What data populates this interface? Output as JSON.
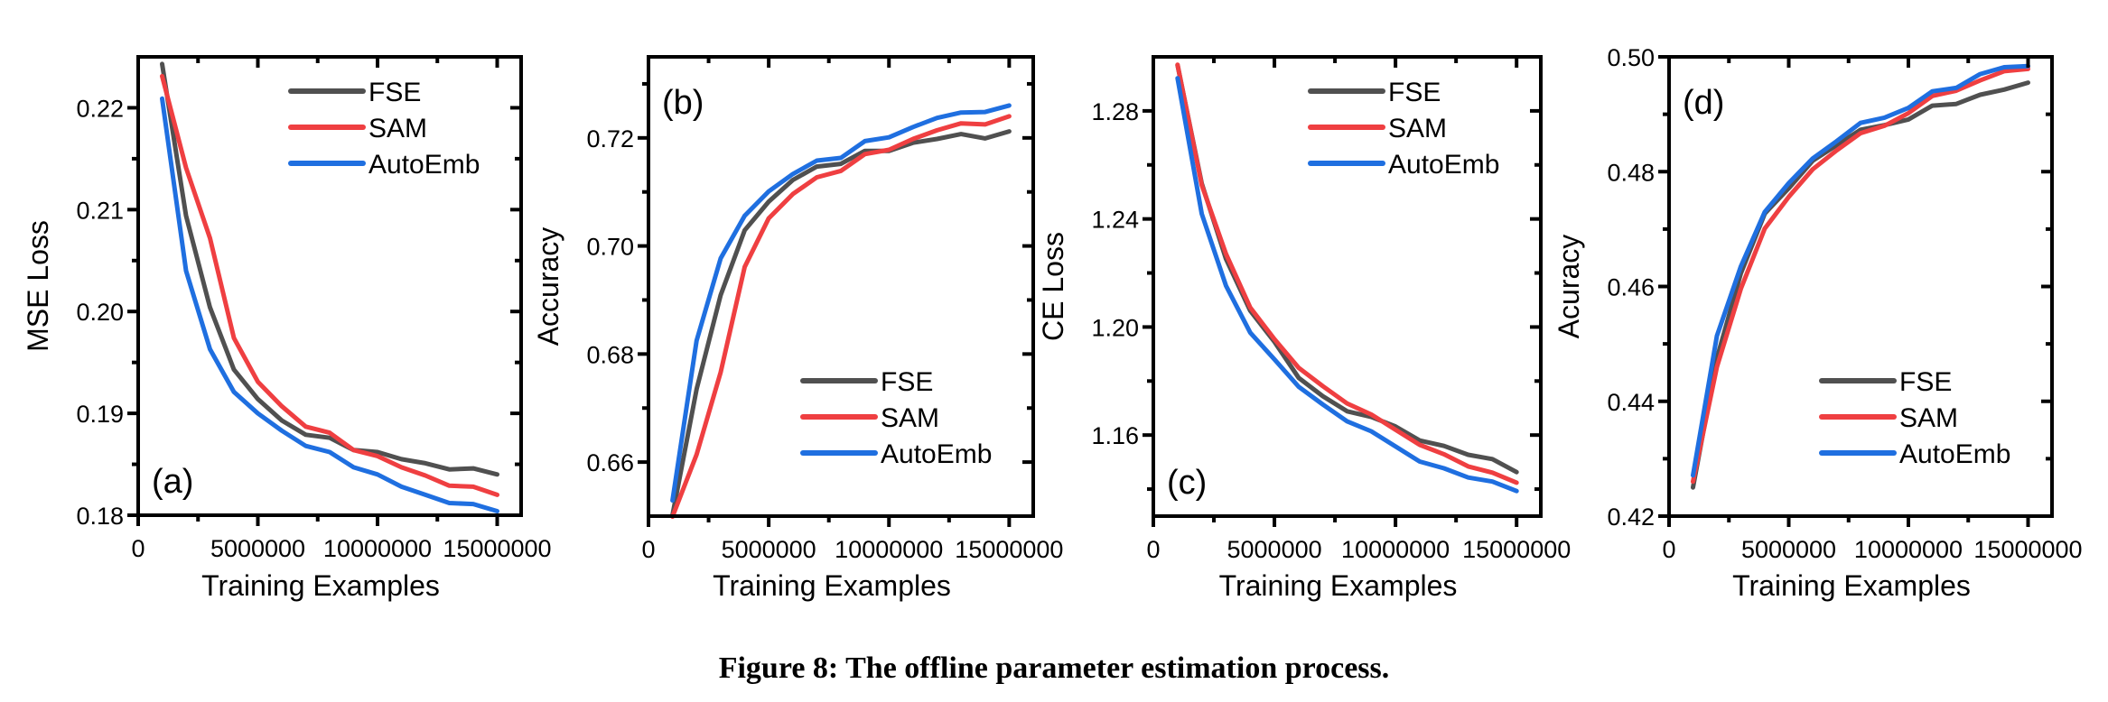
{
  "caption": "Figure 8: The offline parameter estimation process.",
  "colors": {
    "FSE": "#505050",
    "SAM": "#ef3f41",
    "AutoEmb": "#1f6fe0"
  },
  "chart_data": [
    {
      "type": "line",
      "panel_label": "(a)",
      "title": "",
      "xlabel": "Training Examples",
      "ylabel": "MSE Loss",
      "xlim": [
        0,
        16000000
      ],
      "ylim": [
        0.18,
        0.225
      ],
      "xticks": [
        0,
        5000000,
        10000000,
        15000000
      ],
      "xtick_labels": [
        "0",
        "5000000",
        "10000000",
        "15000000"
      ],
      "xminor": [
        2500000,
        7500000,
        12500000
      ],
      "yticks": [
        0.18,
        0.19,
        0.2,
        0.21,
        0.22
      ],
      "ytick_labels": [
        "0.18",
        "0.19",
        "0.20",
        "0.21",
        "0.22"
      ],
      "yminor": [
        0.185,
        0.195,
        0.205,
        0.215
      ],
      "legend_position": "top-right",
      "grid": false,
      "x": [
        1000000,
        2000000,
        3000000,
        4000000,
        5000000,
        6000000,
        7000000,
        8000000,
        9000000,
        10000000,
        11000000,
        12000000,
        13000000,
        14000000,
        15000000
      ],
      "series": [
        {
          "name": "FSE",
          "values": [
            0.2243,
            0.2094,
            0.2004,
            0.1943,
            0.1914,
            0.1893,
            0.1879,
            0.1876,
            0.1864,
            0.1862,
            0.1855,
            0.1851,
            0.1845,
            0.1846,
            0.184
          ]
        },
        {
          "name": "SAM",
          "values": [
            0.2231,
            0.2141,
            0.2072,
            0.1974,
            0.1931,
            0.1907,
            0.1887,
            0.1881,
            0.1864,
            0.1858,
            0.1847,
            0.1839,
            0.1829,
            0.1828,
            0.182
          ]
        },
        {
          "name": "AutoEmb",
          "values": [
            0.2209,
            0.204,
            0.1963,
            0.1921,
            0.19,
            0.1883,
            0.1868,
            0.1862,
            0.1847,
            0.184,
            0.1828,
            0.182,
            0.1812,
            0.1811,
            0.1804
          ]
        }
      ]
    },
    {
      "type": "line",
      "panel_label": "(b)",
      "title": "",
      "xlabel": "Training Examples",
      "ylabel": "Accuracy",
      "xlim": [
        0,
        16000000
      ],
      "ylim": [
        0.65,
        0.735
      ],
      "xticks": [
        0,
        5000000,
        10000000,
        15000000
      ],
      "xtick_labels": [
        "0",
        "5000000",
        "10000000",
        "15000000"
      ],
      "xminor": [
        2500000,
        7500000,
        12500000
      ],
      "yticks": [
        0.66,
        0.68,
        0.7,
        0.72
      ],
      "ytick_labels": [
        "0.66",
        "0.68",
        "0.70",
        "0.72"
      ],
      "yminor": [
        0.67,
        0.69,
        0.71,
        0.73
      ],
      "legend_position": "bottom-right",
      "grid": false,
      "x": [
        1000000,
        2000000,
        3000000,
        4000000,
        5000000,
        6000000,
        7000000,
        8000000,
        9000000,
        10000000,
        11000000,
        12000000,
        13000000,
        14000000,
        15000000
      ],
      "series": [
        {
          "name": "FSE",
          "values": [
            0.6502,
            0.6735,
            0.6909,
            0.7029,
            0.7082,
            0.7122,
            0.7147,
            0.7152,
            0.7176,
            0.7176,
            0.7191,
            0.7198,
            0.7207,
            0.7199,
            0.7212
          ]
        },
        {
          "name": "SAM",
          "values": [
            0.6499,
            0.6614,
            0.6766,
            0.6961,
            0.7051,
            0.7096,
            0.7127,
            0.7139,
            0.717,
            0.7178,
            0.7198,
            0.7214,
            0.7227,
            0.7225,
            0.724
          ]
        },
        {
          "name": "AutoEmb",
          "values": [
            0.6529,
            0.6825,
            0.6977,
            0.7056,
            0.7101,
            0.7133,
            0.7158,
            0.7163,
            0.7194,
            0.7201,
            0.722,
            0.7237,
            0.7247,
            0.7248,
            0.726
          ]
        }
      ]
    },
    {
      "type": "line",
      "panel_label": "(c)",
      "title": "",
      "xlabel": "Training Examples",
      "ylabel": "CE Loss",
      "xlim": [
        0,
        16000000
      ],
      "ylim": [
        1.13,
        1.3
      ],
      "xticks": [
        0,
        5000000,
        10000000,
        15000000
      ],
      "xtick_labels": [
        "0",
        "5000000",
        "10000000",
        "15000000"
      ],
      "xminor": [
        2500000,
        7500000,
        12500000
      ],
      "yticks": [
        1.16,
        1.2,
        1.24,
        1.28
      ],
      "ytick_labels": [
        "1.16",
        "1.20",
        "1.24",
        "1.28"
      ],
      "yminor": [
        1.14,
        1.18,
        1.22,
        1.26
      ],
      "legend_position": "top-right",
      "grid": false,
      "x": [
        1000000,
        2000000,
        3000000,
        4000000,
        5000000,
        6000000,
        7000000,
        8000000,
        9000000,
        10000000,
        11000000,
        12000000,
        13000000,
        14000000,
        15000000
      ],
      "series": [
        {
          "name": "FSE",
          "values": [
            1.2969,
            1.2531,
            1.2252,
            1.206,
            1.1945,
            1.1812,
            1.1744,
            1.1688,
            1.1667,
            1.1632,
            1.158,
            1.156,
            1.1527,
            1.1511,
            1.1463
          ]
        },
        {
          "name": "SAM",
          "values": [
            1.2971,
            1.2525,
            1.2271,
            1.2072,
            1.1955,
            1.1849,
            1.1781,
            1.1717,
            1.1676,
            1.162,
            1.1564,
            1.1529,
            1.1484,
            1.1461,
            1.1424
          ]
        },
        {
          "name": "AutoEmb",
          "values": [
            1.2921,
            1.2419,
            1.2153,
            1.1979,
            1.188,
            1.1779,
            1.1713,
            1.1651,
            1.1614,
            1.1558,
            1.1502,
            1.1477,
            1.1443,
            1.1428,
            1.1393
          ]
        }
      ]
    },
    {
      "type": "line",
      "panel_label": "(d)",
      "title": "",
      "xlabel": "Training Examples",
      "ylabel": "Acuracy",
      "xlim": [
        0,
        16000000
      ],
      "ylim": [
        0.42,
        0.5
      ],
      "xticks": [
        0,
        5000000,
        10000000,
        15000000
      ],
      "xtick_labels": [
        "0",
        "5000000",
        "10000000",
        "15000000"
      ],
      "xminor": [
        2500000,
        7500000,
        12500000
      ],
      "yticks": [
        0.42,
        0.44,
        0.46,
        0.48,
        0.5
      ],
      "ytick_labels": [
        "0.42",
        "0.44",
        "0.46",
        "0.48",
        "0.50"
      ],
      "yminor": [
        0.43,
        0.45,
        0.47,
        0.49
      ],
      "legend_position": "bottom-right",
      "grid": false,
      "x": [
        1000000,
        2000000,
        3000000,
        4000000,
        5000000,
        6000000,
        7000000,
        8000000,
        9000000,
        10000000,
        11000000,
        12000000,
        13000000,
        14000000,
        15000000
      ],
      "series": [
        {
          "name": "FSE",
          "values": [
            0.425,
            0.4475,
            0.4623,
            0.4727,
            0.4771,
            0.4819,
            0.4846,
            0.4873,
            0.4881,
            0.4891,
            0.4915,
            0.4918,
            0.4934,
            0.4943,
            0.4955
          ]
        },
        {
          "name": "SAM",
          "values": [
            0.426,
            0.446,
            0.4596,
            0.4701,
            0.4756,
            0.4804,
            0.4837,
            0.4867,
            0.488,
            0.4902,
            0.4932,
            0.4941,
            0.4959,
            0.4975,
            0.4979
          ]
        },
        {
          "name": "AutoEmb",
          "values": [
            0.4271,
            0.4514,
            0.4635,
            0.473,
            0.478,
            0.4823,
            0.4853,
            0.4885,
            0.4894,
            0.4911,
            0.494,
            0.4946,
            0.497,
            0.4982,
            0.4984
          ]
        }
      ]
    }
  ]
}
